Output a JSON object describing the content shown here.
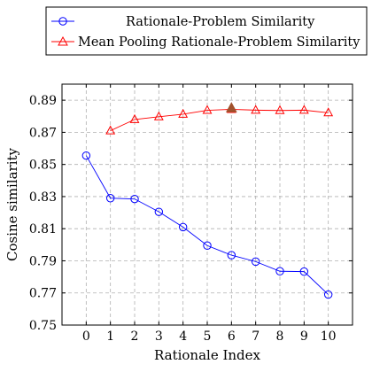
{
  "chart_data": {
    "type": "line",
    "xlabel": "Rationale Index",
    "ylabel": "Cosine similarity",
    "xlim": [
      -1,
      11
    ],
    "ylim": [
      0.75,
      0.9
    ],
    "x_ticks": [
      "0",
      "1",
      "2",
      "3",
      "4",
      "5",
      "6",
      "7",
      "8",
      "9",
      "10"
    ],
    "y_ticks": [
      "0.75",
      "0.77",
      "0.79",
      "0.81",
      "0.83",
      "0.85",
      "0.87",
      "0.89"
    ],
    "grid": true,
    "legend_position": "top",
    "series": [
      {
        "name": "Rationale-Problem Similarity",
        "color": "#0000ff",
        "marker": "circle",
        "x": [
          0,
          1,
          2,
          3,
          4,
          5,
          6,
          7,
          8,
          9,
          10
        ],
        "y": [
          0.8555,
          0.829,
          0.8285,
          0.8205,
          0.811,
          0.7995,
          0.7935,
          0.7895,
          0.7835,
          0.7833,
          0.769
        ]
      },
      {
        "name": "Mean Pooling Rationale-Problem Similarity",
        "color": "#ff0000",
        "marker": "triangle",
        "x": [
          1,
          2,
          3,
          4,
          5,
          6,
          7,
          8,
          9,
          10
        ],
        "y": [
          0.871,
          0.878,
          0.8797,
          0.8813,
          0.8837,
          0.8843,
          0.8838,
          0.8836,
          0.8838,
          0.8822
        ]
      }
    ],
    "highlight": {
      "x": 6,
      "y": 0.885,
      "marker": "triangle",
      "color": "#a0522d"
    }
  }
}
